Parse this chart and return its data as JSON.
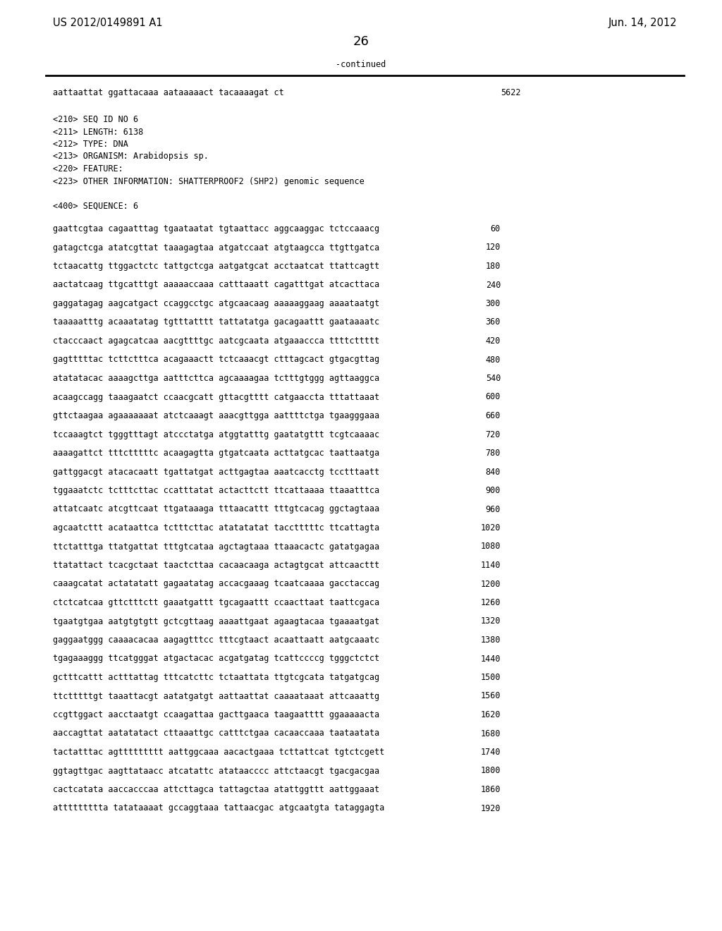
{
  "header_left": "US 2012/0149891 A1",
  "header_right": "Jun. 14, 2012",
  "page_number": "26",
  "continued_label": "-continued",
  "background_color": "#ffffff",
  "text_color": "#000000",
  "font_size_header": 10.5,
  "font_size_body": 8.5,
  "font_size_page_num": 13,
  "continued_sequence": "aattaattat ggattacaaa aataaaaact tacaaaagat ct",
  "continued_seq_num": "5622",
  "metadata_lines": [
    "<210> SEQ ID NO 6",
    "<211> LENGTH: 6138",
    "<212> TYPE: DNA",
    "<213> ORGANISM: Arabidopsis sp.",
    "<220> FEATURE:",
    "<223> OTHER INFORMATION: SHATTERPROOF2 (SHP2) genomic sequence"
  ],
  "sequence_label": "<400> SEQUENCE: 6",
  "sequence_lines": [
    [
      "gaattcgtaa cagaatttag tgaataatat tgtaattacc aggcaaggac tctccaaacg",
      "60"
    ],
    [
      "gatagctcga atatcgttat taaagagtaa atgatccaat atgtaagcca ttgttgatca",
      "120"
    ],
    [
      "tctaacattg ttggactctc tattgctcga aatgatgcat acctaatcat ttattcagtt",
      "180"
    ],
    [
      "aactatcaag ttgcatttgt aaaaaccaaa catttaaatt cagatttgat atcacttaca",
      "240"
    ],
    [
      "gaggatagag aagcatgact ccaggcctgc atgcaacaag aaaaaggaag aaaataatgt",
      "300"
    ],
    [
      "taaaaatttg acaaatatag tgtttatttt tattatatga gacagaattt gaataaaatc",
      "360"
    ],
    [
      "ctacccaact agagcatcaa aacgttttgc aatcgcaata atgaaaccca ttttcttttt",
      "420"
    ],
    [
      "gagtttttac tcttctttca acagaaactt tctcaaacgt ctttagcact gtgacgttag",
      "480"
    ],
    [
      "atatatacac aaaagcttga aatttcttca agcaaaagaa tctttgtggg agttaaggca",
      "540"
    ],
    [
      "acaagccagg taaagaatct ccaacgcatt gttacgtttt catgaaccta tttattaaat",
      "600"
    ],
    [
      "gttctaagaa agaaaaaaat atctcaaagt aaacgttgga aattttctga tgaagggaaa",
      "660"
    ],
    [
      "tccaaagtct tgggtttagt atccctatga atggtatttg gaatatgttt tcgtcaaaac",
      "720"
    ],
    [
      "aaaagattct tttctttttc acaagagtta gtgatcaata acttatgcac taattaatga",
      "780"
    ],
    [
      "gattggacgt atacacaatt tgattatgat acttgagtaa aaatcacctg tcctttaatt",
      "840"
    ],
    [
      "tggaaatctc tctttcttac ccatttatat actacttctt ttcattaaaa ttaaatttca",
      "900"
    ],
    [
      "attatcaatc atcgttcaat ttgataaaga tttaacattt tttgtcacag ggctagtaaa",
      "960"
    ],
    [
      "agcaatcttt acataattca tctttcttac atatatatat tacctttttc ttcattagta",
      "1020"
    ],
    [
      "ttctatttga ttatgattat tttgtcataa agctagtaaa ttaaacactc gatatgagaa",
      "1080"
    ],
    [
      "ttatattact tcacgctaat taactcttaa cacaacaaga actagtgcat attcaacttt",
      "1140"
    ],
    [
      "caaagcatat actatatatt gagaatatag accacgaaag tcaatcaaaa gacctaccag",
      "1200"
    ],
    [
      "ctctcatcaa gttctttctt gaaatgattt tgcagaattt ccaacttaat taattcgaca",
      "1260"
    ],
    [
      "tgaatgtgaa aatgtgtgtt gctcgttaag aaaattgaat agaagtacaa tgaaaatgat",
      "1320"
    ],
    [
      "gaggaatggg caaaacacaa aagagtttcc tttcgtaact acaattaatt aatgcaaatc",
      "1380"
    ],
    [
      "tgagaaaggg ttcatgggat atgactacac acgatgatag tcattccccg tgggctctct",
      "1440"
    ],
    [
      "gctttcattt actttattag tttcatcttc tctaattata ttgtcgcata tatgatgcag",
      "1500"
    ],
    [
      "ttctttttgt taaattacgt aatatgatgt aattaattat caaaataaat attcaaattg",
      "1560"
    ],
    [
      "ccgttggact aacctaatgt ccaagattaa gacttgaaca taagaatttt ggaaaaacta",
      "1620"
    ],
    [
      "aaccagttat aatatatact cttaaattgc catttctgaa cacaaccaaa taataatata",
      "1680"
    ],
    [
      "tactatttac agttttttttt aattggcaaa aacactgaaa tcttattcat tgtctcgett",
      "1740"
    ],
    [
      "ggtagttgac aagttataacc atcatattc atataacccc attctaacgt tgacgacgaa",
      "1800"
    ],
    [
      "cactcatata aaccacccaa attcttagca tattagctaa atattggttt aattggaaat",
      "1860"
    ],
    [
      "attttttttta tatataaaat gccaggtaaa tattaacgac atgcaatgta tataggagta",
      "1920"
    ]
  ]
}
